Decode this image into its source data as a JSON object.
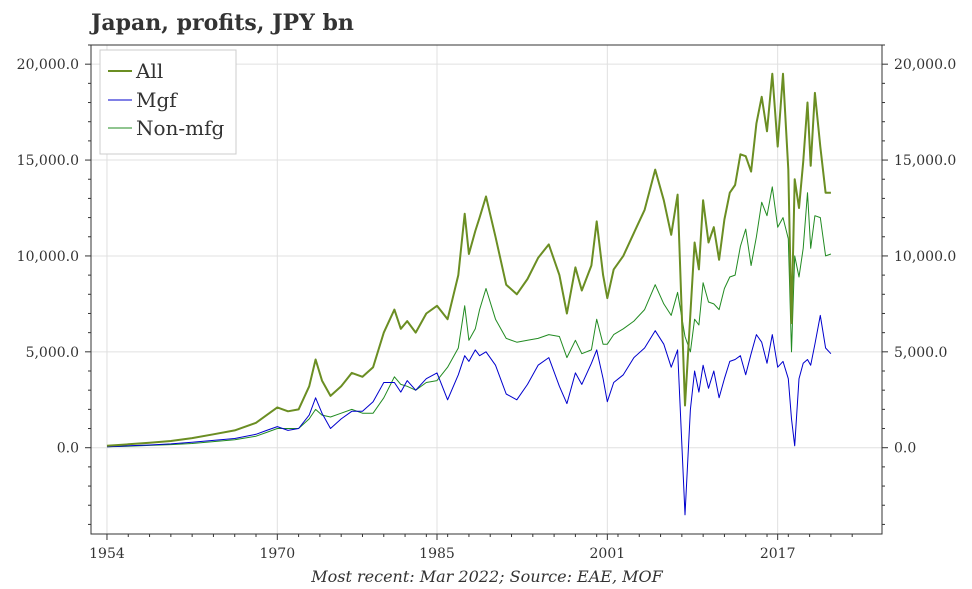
{
  "chart_data": {
    "type": "line",
    "title": "Japan, profits, JPY bn",
    "caption": "Most recent: Mar 2022; Source: EAE, MOF",
    "xlabel": "",
    "ylabel": "",
    "xlim": [
      1952.5,
      2026.8
    ],
    "ylim": [
      -4500,
      21000
    ],
    "x_ticks": [
      1954,
      1970,
      1985,
      2001,
      2017
    ],
    "x_tick_labels": [
      "1954",
      "1970",
      "1985",
      "2001",
      "2017"
    ],
    "y_ticks": [
      0,
      5000,
      10000,
      15000,
      20000
    ],
    "y_tick_labels": [
      "0.0",
      "5,000.0",
      "10,000.0",
      "15,000.0",
      "20,000.0"
    ],
    "legend": {
      "position": "top-left"
    },
    "series": [
      {
        "name": "All",
        "color": "#6b8e23",
        "width": 2,
        "x": [
          1954,
          1956,
          1958,
          1960,
          1962,
          1964,
          1966,
          1968,
          1969,
          1970,
          1971,
          1972,
          1973,
          1973.6,
          1974.2,
          1975,
          1976,
          1977,
          1978,
          1979,
          1980,
          1981,
          1981.6,
          1982.2,
          1983,
          1984,
          1985,
          1986,
          1987,
          1987.6,
          1988,
          1988.6,
          1989,
          1989.6,
          1990.5,
          1991.5,
          1992.5,
          1993.5,
          1994.5,
          1995.5,
          1996.5,
          1997.2,
          1998,
          1998.6,
          1999.5,
          2000,
          2000.6,
          2001,
          2001.6,
          2002.5,
          2003.5,
          2004.5,
          2005.5,
          2006.3,
          2007,
          2007.6,
          2008.3,
          2008.8,
          2009.2,
          2009.6,
          2010,
          2010.5,
          2011,
          2011.5,
          2012,
          2012.5,
          2013,
          2013.5,
          2014,
          2014.5,
          2015,
          2015.5,
          2016,
          2016.5,
          2017,
          2017.5,
          2018,
          2018.3,
          2018.6,
          2019,
          2019.4,
          2019.8,
          2020.1,
          2020.5,
          2021,
          2021.5,
          2022
        ],
        "values": [
          100,
          180,
          260,
          350,
          500,
          700,
          900,
          1300,
          1700,
          2100,
          1900,
          2000,
          3200,
          4600,
          3500,
          2700,
          3200,
          3900,
          3700,
          4200,
          6000,
          7200,
          6200,
          6600,
          6000,
          7000,
          7400,
          6700,
          9000,
          12200,
          10100,
          11300,
          12000,
          13100,
          11000,
          8500,
          8000,
          8800,
          9900,
          10600,
          9000,
          7000,
          9400,
          8200,
          9500,
          11800,
          9000,
          7800,
          9300,
          10000,
          11200,
          12400,
          14500,
          12900,
          11100,
          13200,
          2200,
          7000,
          10700,
          9300,
          12900,
          10700,
          11500,
          9800,
          11900,
          13300,
          13700,
          15300,
          15200,
          14400,
          16900,
          18300,
          16500,
          19500,
          15700,
          19500,
          14500,
          6500,
          14000,
          12500,
          14900,
          18000,
          14700,
          18500,
          15700,
          13300,
          13300
        ]
      },
      {
        "name": "Mgf",
        "color": "#0000cd",
        "width": 1,
        "x": [
          1954,
          1956,
          1958,
          1960,
          1962,
          1964,
          1966,
          1968,
          1969,
          1970,
          1971,
          1972,
          1973,
          1973.6,
          1974.2,
          1975,
          1976,
          1977,
          1978,
          1979,
          1980,
          1981,
          1981.6,
          1982.2,
          1983,
          1984,
          1985,
          1986,
          1987,
          1987.6,
          1988,
          1988.6,
          1989,
          1989.6,
          1990.5,
          1991.5,
          1992.5,
          1993.5,
          1994.5,
          1995.5,
          1996.5,
          1997.2,
          1998,
          1998.6,
          1999.5,
          2000,
          2000.6,
          2001,
          2001.6,
          2002.5,
          2003.5,
          2004.5,
          2005.5,
          2006.3,
          2007,
          2007.6,
          2008.3,
          2008.8,
          2009.2,
          2009.6,
          2010,
          2010.5,
          2011,
          2011.5,
          2012,
          2012.5,
          2013,
          2013.5,
          2014,
          2014.5,
          2015,
          2015.5,
          2016,
          2016.5,
          2017,
          2017.5,
          2018,
          2018.3,
          2018.6,
          2019,
          2019.4,
          2019.8,
          2020.1,
          2020.5,
          2021,
          2021.5,
          2022
        ],
        "values": [
          50,
          100,
          140,
          200,
          280,
          380,
          480,
          700,
          900,
          1100,
          900,
          1000,
          1700,
          2600,
          1800,
          1000,
          1500,
          1900,
          1900,
          2400,
          3400,
          3400,
          2900,
          3500,
          3000,
          3600,
          3900,
          2500,
          3800,
          4800,
          4500,
          5100,
          4800,
          5000,
          4300,
          2800,
          2500,
          3300,
          4300,
          4700,
          3200,
          2300,
          3900,
          3300,
          4400,
          5100,
          3600,
          2400,
          3400,
          3800,
          4700,
          5200,
          6100,
          5400,
          4200,
          5100,
          -3500,
          2000,
          4000,
          2900,
          4300,
          3100,
          4000,
          2600,
          3600,
          4500,
          4600,
          4800,
          3800,
          4900,
          5900,
          5500,
          4400,
          5900,
          4200,
          4500,
          3600,
          1500,
          100,
          3600,
          4400,
          4600,
          4300,
          5400,
          6900,
          5200,
          4900
        ]
      },
      {
        "name": "Non-mfg",
        "color": "#228b22",
        "width": 1,
        "x": [
          1954,
          1956,
          1958,
          1960,
          1962,
          1964,
          1966,
          1968,
          1969,
          1970,
          1971,
          1972,
          1973,
          1973.6,
          1974.2,
          1975,
          1976,
          1977,
          1978,
          1979,
          1980,
          1981,
          1981.6,
          1982.2,
          1983,
          1984,
          1985,
          1986,
          1987,
          1987.6,
          1988,
          1988.6,
          1989,
          1989.6,
          1990.5,
          1991.5,
          1992.5,
          1993.5,
          1994.5,
          1995.5,
          1996.5,
          1997.2,
          1998,
          1998.6,
          1999.5,
          2000,
          2000.6,
          2001,
          2001.6,
          2002.5,
          2003.5,
          2004.5,
          2005.5,
          2006.3,
          2007,
          2007.6,
          2008.3,
          2008.8,
          2009.2,
          2009.6,
          2010,
          2010.5,
          2011,
          2011.5,
          2012,
          2012.5,
          2013,
          2013.5,
          2014,
          2014.5,
          2015,
          2015.5,
          2016,
          2016.5,
          2017,
          2017.5,
          2018,
          2018.3,
          2018.6,
          2019,
          2019.4,
          2019.8,
          2020.1,
          2020.5,
          2021,
          2021.5,
          2022
        ],
        "values": [
          50,
          80,
          120,
          160,
          220,
          320,
          420,
          600,
          800,
          1000,
          1000,
          1000,
          1500,
          2000,
          1700,
          1600,
          1800,
          2000,
          1800,
          1800,
          2600,
          3700,
          3300,
          3200,
          3000,
          3400,
          3500,
          4200,
          5200,
          7400,
          5600,
          6200,
          7200,
          8300,
          6700,
          5700,
          5500,
          5600,
          5700,
          5900,
          5800,
          4700,
          5600,
          4900,
          5100,
          6700,
          5400,
          5400,
          5900,
          6200,
          6600,
          7200,
          8500,
          7500,
          6900,
          8100,
          5800,
          5000,
          6700,
          6400,
          8600,
          7600,
          7500,
          7200,
          8300,
          8900,
          9000,
          10500,
          11400,
          9500,
          11000,
          12800,
          12100,
          13600,
          11500,
          12000,
          10900,
          5000,
          10000,
          8900,
          10400,
          13300,
          10400,
          12100,
          12000,
          10000,
          10100
        ]
      }
    ]
  }
}
